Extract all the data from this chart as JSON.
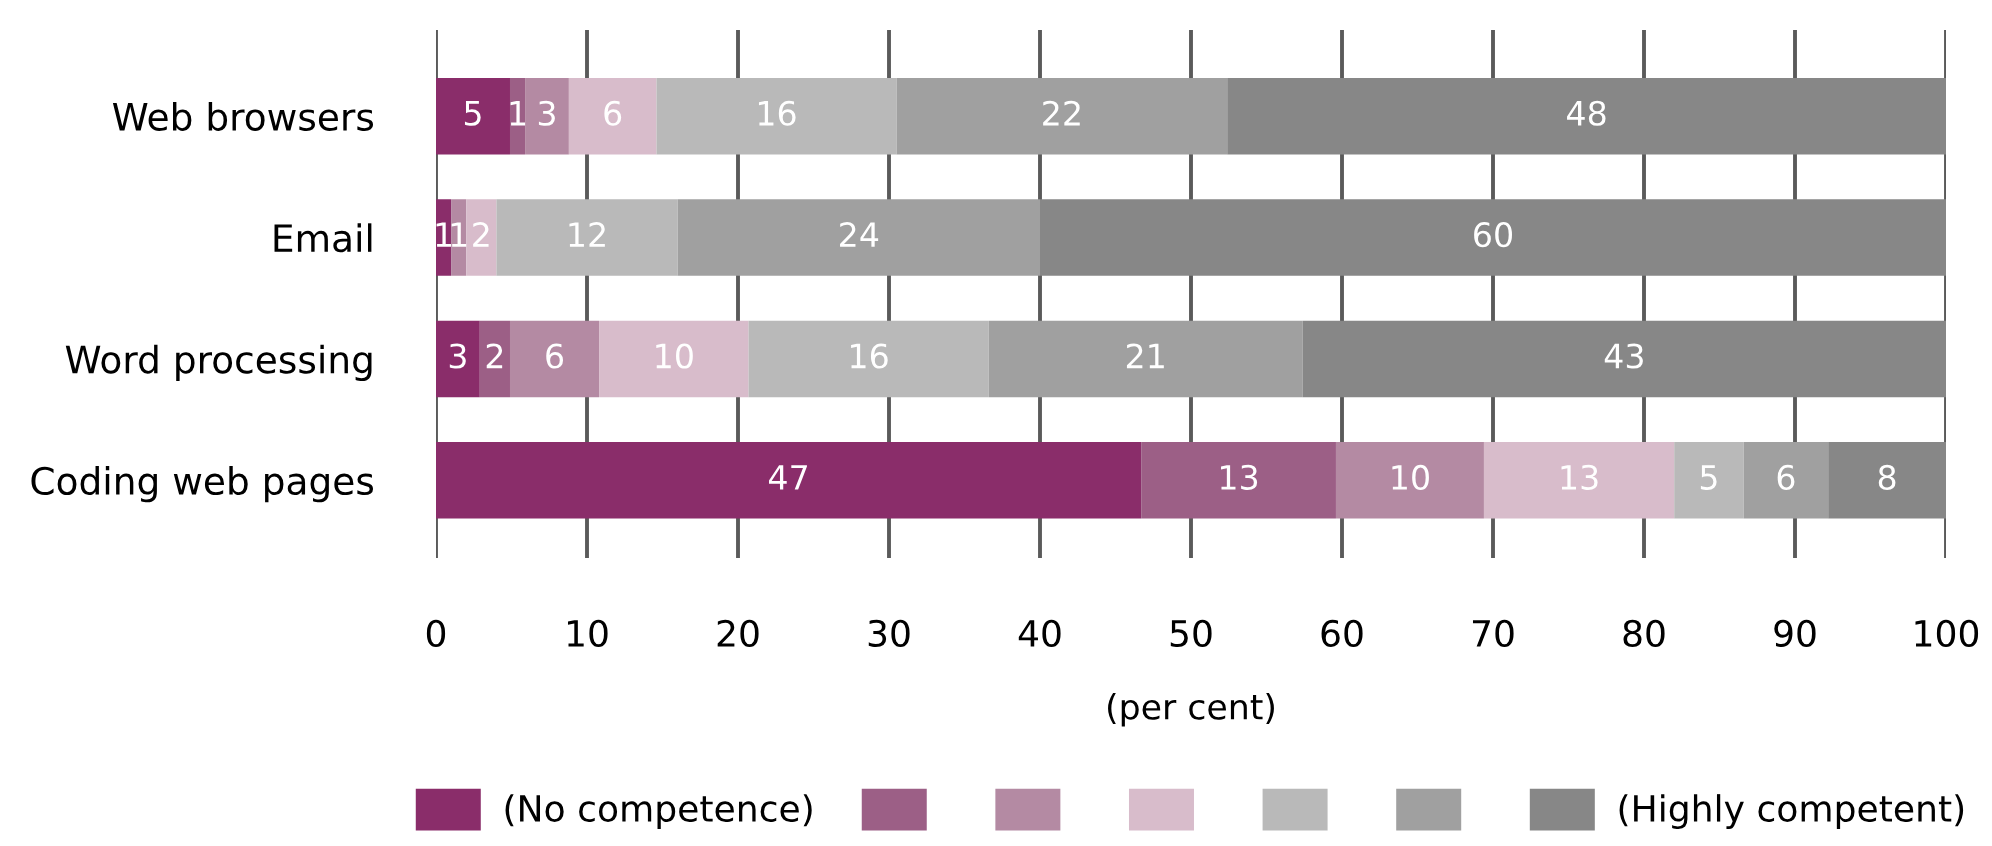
{
  "chart_data": {
    "type": "bar",
    "orientation": "horizontal",
    "stacked": true,
    "categories": [
      "Web browsers",
      "Email",
      "Word processing",
      "Coding web pages"
    ],
    "series": [
      {
        "name": "(No competence)",
        "color": "#8a2d6a",
        "values": [
          4.9,
          1,
          2.9,
          46.7
        ],
        "value_labels": [
          "5",
          "1",
          "3",
          "47"
        ]
      },
      {
        "color": "#9c5f86",
        "values": [
          1.0,
          null,
          2.0,
          12.9
        ],
        "value_labels": [
          "1",
          null,
          "2",
          "13"
        ]
      },
      {
        "color": "#b48aa3",
        "values": [
          2.9,
          1,
          5.9,
          9.8
        ],
        "value_labels": [
          "3",
          "1",
          "6",
          "10"
        ]
      },
      {
        "color": "#d8bccb",
        "values": [
          5.8,
          2,
          9.9,
          12.6
        ],
        "value_labels": [
          "6",
          "2",
          "10",
          "13"
        ]
      },
      {
        "color": "#b9b9b9",
        "values": [
          15.9,
          12,
          15.9,
          4.6
        ],
        "value_labels": [
          "16",
          "12",
          "16",
          "5"
        ]
      },
      {
        "color": "#a0a0a0",
        "values": [
          21.9,
          24,
          20.8,
          5.6
        ],
        "value_labels": [
          "22",
          "24",
          "21",
          "6"
        ]
      },
      {
        "name": "(Highly competent)",
        "color": "#878787",
        "values": [
          47.6,
          60,
          42.6,
          7.8
        ],
        "value_labels": [
          "48",
          "60",
          "43",
          "8"
        ]
      }
    ],
    "xlim": [
      0,
      100
    ],
    "xticks": [
      0,
      10,
      20,
      30,
      40,
      50,
      60,
      70,
      80,
      90,
      100
    ],
    "xlabel": "(per cent)",
    "grid": "x",
    "legend": "bottom"
  }
}
